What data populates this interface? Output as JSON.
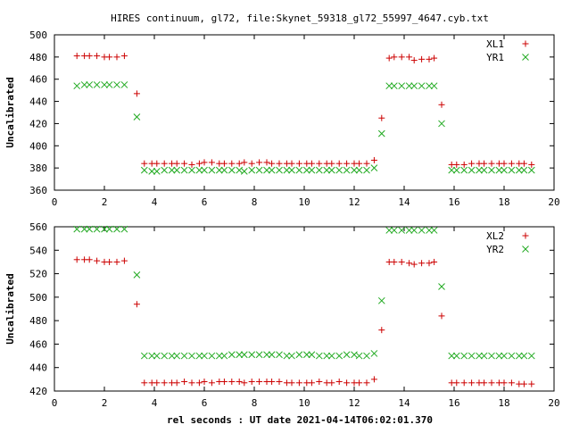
{
  "title": "HIRES continuum, gl72, file:Skynet_59318_gl72_55997_4647.cyb.txt",
  "x_axis_label": "rel seconds : UT date 2021-04-14T06:02:01.370",
  "colors": {
    "series_a": "#cc0000",
    "series_b": "#22aa22",
    "frame": "#000000"
  },
  "chart_data": [
    {
      "type": "scatter",
      "ylabel": "Uncalibrated",
      "xlim": [
        0,
        20
      ],
      "ylim": [
        360,
        500
      ],
      "x_ticks": [
        0,
        2,
        4,
        6,
        8,
        10,
        12,
        14,
        16,
        18,
        20
      ],
      "y_ticks": [
        360,
        380,
        400,
        420,
        440,
        460,
        480,
        500
      ],
      "legend_position": "top-right",
      "grid": false,
      "x": [
        0.9,
        1.2,
        1.4,
        1.7,
        2.0,
        2.2,
        2.5,
        2.8,
        3.3,
        3.6,
        3.9,
        4.1,
        4.4,
        4.7,
        4.9,
        5.2,
        5.5,
        5.8,
        6.0,
        6.3,
        6.6,
        6.8,
        7.1,
        7.4,
        7.6,
        7.9,
        8.2,
        8.5,
        8.7,
        9.0,
        9.3,
        9.5,
        9.8,
        10.1,
        10.3,
        10.6,
        10.9,
        11.1,
        11.4,
        11.7,
        12.0,
        12.2,
        12.5,
        12.8,
        13.1,
        13.4,
        13.6,
        13.9,
        14.2,
        14.4,
        14.7,
        15.0,
        15.2,
        15.5,
        15.9,
        16.1,
        16.4,
        16.7,
        17.0,
        17.2,
        17.5,
        17.8,
        18.0,
        18.3,
        18.6,
        18.8,
        19.1
      ],
      "series": [
        {
          "name": "XL1",
          "marker": "plus",
          "values": [
            481,
            481,
            481,
            481,
            480,
            480,
            480,
            481,
            447,
            384,
            384,
            384,
            384,
            384,
            384,
            384,
            383,
            384,
            385,
            385,
            384,
            384,
            384,
            384,
            385,
            384,
            385,
            385,
            384,
            384,
            384,
            384,
            384,
            384,
            384,
            384,
            384,
            384,
            384,
            384,
            384,
            384,
            384,
            387,
            425,
            479,
            480,
            480,
            480,
            477,
            478,
            478,
            479,
            437,
            383,
            383,
            383,
            384,
            384,
            384,
            384,
            384,
            384,
            384,
            384,
            384,
            383
          ]
        },
        {
          "name": "YR1",
          "marker": "cross",
          "values": [
            454,
            455,
            455,
            455,
            455,
            455,
            455,
            455,
            426,
            378,
            377,
            377,
            378,
            378,
            378,
            378,
            378,
            378,
            378,
            378,
            378,
            378,
            378,
            378,
            377,
            378,
            378,
            378,
            378,
            378,
            378,
            378,
            378,
            378,
            378,
            378,
            378,
            378,
            378,
            378,
            378,
            378,
            378,
            380,
            411,
            454,
            454,
            454,
            454,
            454,
            454,
            454,
            454,
            420,
            378,
            378,
            378,
            378,
            378,
            378,
            378,
            378,
            378,
            378,
            378,
            378,
            378
          ]
        }
      ]
    },
    {
      "type": "scatter",
      "ylabel": "Uncalibrated",
      "xlim": [
        0,
        20
      ],
      "ylim": [
        420,
        560
      ],
      "x_ticks": [
        0,
        2,
        4,
        6,
        8,
        10,
        12,
        14,
        16,
        18,
        20
      ],
      "y_ticks": [
        420,
        440,
        460,
        480,
        500,
        520,
        540,
        560
      ],
      "legend_position": "top-right",
      "grid": false,
      "x": [
        0.9,
        1.2,
        1.4,
        1.7,
        2.0,
        2.2,
        2.5,
        2.8,
        3.3,
        3.6,
        3.9,
        4.1,
        4.4,
        4.7,
        4.9,
        5.2,
        5.5,
        5.8,
        6.0,
        6.3,
        6.6,
        6.8,
        7.1,
        7.4,
        7.6,
        7.9,
        8.2,
        8.5,
        8.7,
        9.0,
        9.3,
        9.5,
        9.8,
        10.1,
        10.3,
        10.6,
        10.9,
        11.1,
        11.4,
        11.7,
        12.0,
        12.2,
        12.5,
        12.8,
        13.1,
        13.4,
        13.6,
        13.9,
        14.2,
        14.4,
        14.7,
        15.0,
        15.2,
        15.5,
        15.9,
        16.1,
        16.4,
        16.7,
        17.0,
        17.2,
        17.5,
        17.8,
        18.0,
        18.3,
        18.6,
        18.8,
        19.1
      ],
      "series": [
        {
          "name": "XL2",
          "marker": "plus",
          "values": [
            532,
            532,
            532,
            531,
            530,
            530,
            530,
            531,
            494,
            427,
            427,
            427,
            427,
            427,
            427,
            428,
            427,
            427,
            428,
            427,
            428,
            428,
            428,
            428,
            427,
            428,
            428,
            428,
            428,
            428,
            427,
            427,
            427,
            427,
            427,
            428,
            427,
            427,
            428,
            427,
            427,
            427,
            427,
            430,
            472,
            530,
            530,
            530,
            529,
            528,
            529,
            529,
            530,
            484,
            427,
            427,
            427,
            427,
            427,
            427,
            427,
            427,
            427,
            427,
            426,
            426,
            426
          ]
        },
        {
          "name": "YR2",
          "marker": "cross",
          "values": [
            558,
            558,
            558,
            558,
            558,
            558,
            558,
            558,
            519,
            450,
            450,
            450,
            450,
            450,
            450,
            450,
            450,
            450,
            450,
            450,
            450,
            450,
            451,
            451,
            451,
            451,
            451,
            451,
            451,
            451,
            450,
            450,
            451,
            451,
            451,
            450,
            450,
            450,
            450,
            451,
            451,
            450,
            450,
            452,
            497,
            557,
            557,
            557,
            557,
            557,
            557,
            557,
            557,
            509,
            450,
            450,
            450,
            450,
            450,
            450,
            450,
            450,
            450,
            450,
            450,
            450,
            450
          ]
        }
      ]
    }
  ]
}
